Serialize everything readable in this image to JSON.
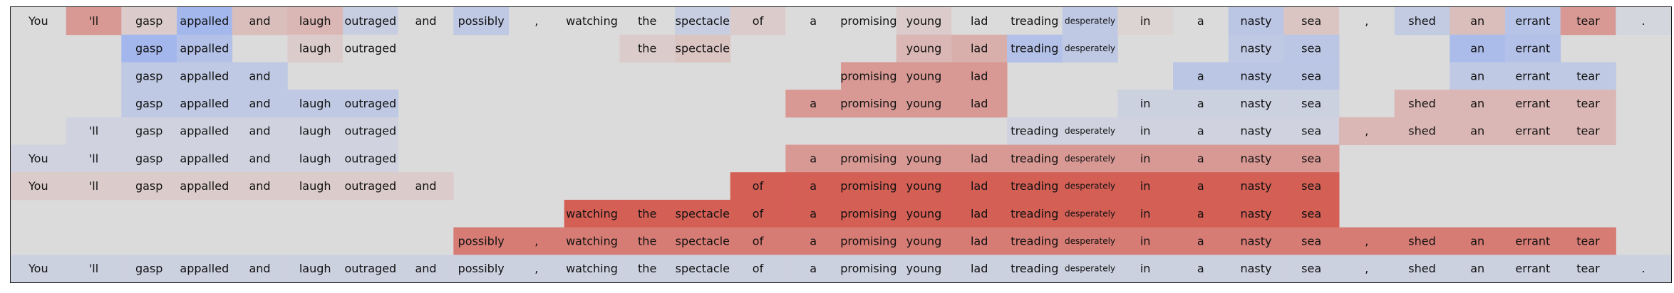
{
  "chart_data": {
    "type": "heatmap",
    "title": "",
    "xlabel": "",
    "ylabel": "",
    "tokens": [
      "You",
      "'ll",
      "gasp",
      "appalled",
      "and",
      "laugh",
      "outraged",
      "and",
      "possibly",
      ",",
      "watching",
      "the",
      "spectacle",
      "of",
      "a",
      "promising",
      "young",
      "lad",
      "treading",
      "desperately",
      "in",
      "a",
      "nasty",
      "sea",
      ",",
      "shed",
      "an",
      "errant",
      "tear",
      "."
    ],
    "value_range": [
      -1,
      1
    ],
    "colormap": "coolwarm",
    "background_color": "#dcdbdb",
    "colors": {
      "neg_strong": "#8aa7f5",
      "neutral": "#dcdbdb",
      "pos_strong": "#d2493d"
    },
    "rows": [
      [
        0.0,
        0.45,
        0.1,
        -0.7,
        0.2,
        0.25,
        -0.25,
        0.0,
        -0.35,
        0.0,
        0.0,
        0.0,
        -0.25,
        0.1,
        0.0,
        0.0,
        0.1,
        0.0,
        0.0,
        -0.35,
        0.05,
        0.0,
        -0.4,
        0.15,
        0.0,
        -0.3,
        0.2,
        -0.45,
        0.45,
        -0.1
      ],
      [
        null,
        null,
        -0.7,
        -0.5,
        null,
        0.1,
        0.0,
        null,
        null,
        null,
        null,
        0.1,
        0.15,
        null,
        null,
        null,
        0.25,
        0.3,
        -0.5,
        -0.35,
        null,
        null,
        -0.35,
        -0.4,
        null,
        null,
        -0.6,
        -0.5,
        null,
        null
      ],
      [
        null,
        null,
        -0.35,
        -0.35,
        -0.35,
        null,
        null,
        null,
        null,
        null,
        null,
        null,
        null,
        null,
        null,
        0.45,
        0.45,
        0.45,
        null,
        null,
        null,
        -0.4,
        -0.4,
        -0.4,
        null,
        null,
        -0.35,
        -0.35,
        -0.35,
        null
      ],
      [
        null,
        null,
        -0.35,
        -0.35,
        -0.35,
        -0.35,
        -0.35,
        null,
        null,
        null,
        null,
        null,
        null,
        null,
        0.45,
        0.45,
        0.45,
        0.45,
        null,
        null,
        -0.2,
        -0.2,
        -0.2,
        -0.2,
        null,
        0.25,
        0.25,
        0.25,
        0.25,
        null
      ],
      [
        null,
        -0.15,
        -0.15,
        -0.15,
        -0.15,
        -0.15,
        -0.15,
        null,
        null,
        null,
        null,
        null,
        null,
        null,
        null,
        null,
        null,
        null,
        -0.15,
        -0.15,
        -0.15,
        -0.15,
        -0.15,
        -0.15,
        0.25,
        0.25,
        0.25,
        0.25,
        0.25,
        null
      ],
      [
        -0.15,
        -0.15,
        -0.15,
        -0.15,
        -0.15,
        -0.15,
        -0.15,
        null,
        null,
        null,
        null,
        null,
        null,
        null,
        0.45,
        0.45,
        0.45,
        0.45,
        0.45,
        0.45,
        0.45,
        0.45,
        0.45,
        0.45,
        null,
        null,
        null,
        null,
        null,
        null
      ],
      [
        0.1,
        0.1,
        0.1,
        0.1,
        0.1,
        0.1,
        0.1,
        0.1,
        null,
        null,
        null,
        null,
        null,
        0.85,
        0.85,
        0.85,
        0.85,
        0.85,
        0.85,
        0.85,
        0.85,
        0.85,
        0.85,
        0.85,
        null,
        null,
        null,
        null,
        null,
        null
      ],
      [
        null,
        null,
        null,
        null,
        null,
        null,
        null,
        null,
        null,
        null,
        0.85,
        0.85,
        0.85,
        0.85,
        0.85,
        0.85,
        0.85,
        0.85,
        0.85,
        0.85,
        0.85,
        0.85,
        0.85,
        0.85,
        null,
        null,
        null,
        null,
        null,
        null
      ],
      [
        null,
        null,
        null,
        null,
        null,
        null,
        null,
        null,
        0.65,
        0.65,
        0.65,
        0.65,
        0.65,
        0.65,
        0.65,
        0.65,
        0.65,
        0.65,
        0.65,
        0.65,
        0.65,
        0.65,
        0.65,
        0.65,
        0.65,
        0.65,
        0.65,
        0.65,
        0.65,
        null
      ],
      [
        -0.2,
        -0.2,
        -0.2,
        -0.2,
        -0.2,
        -0.2,
        -0.2,
        -0.2,
        -0.2,
        -0.2,
        -0.2,
        -0.2,
        -0.2,
        -0.2,
        -0.2,
        -0.2,
        -0.2,
        -0.2,
        -0.2,
        -0.2,
        -0.2,
        -0.2,
        -0.2,
        -0.2,
        -0.2,
        -0.2,
        -0.2,
        -0.2,
        -0.2,
        -0.2
      ]
    ],
    "grid": false,
    "legend": "none"
  }
}
